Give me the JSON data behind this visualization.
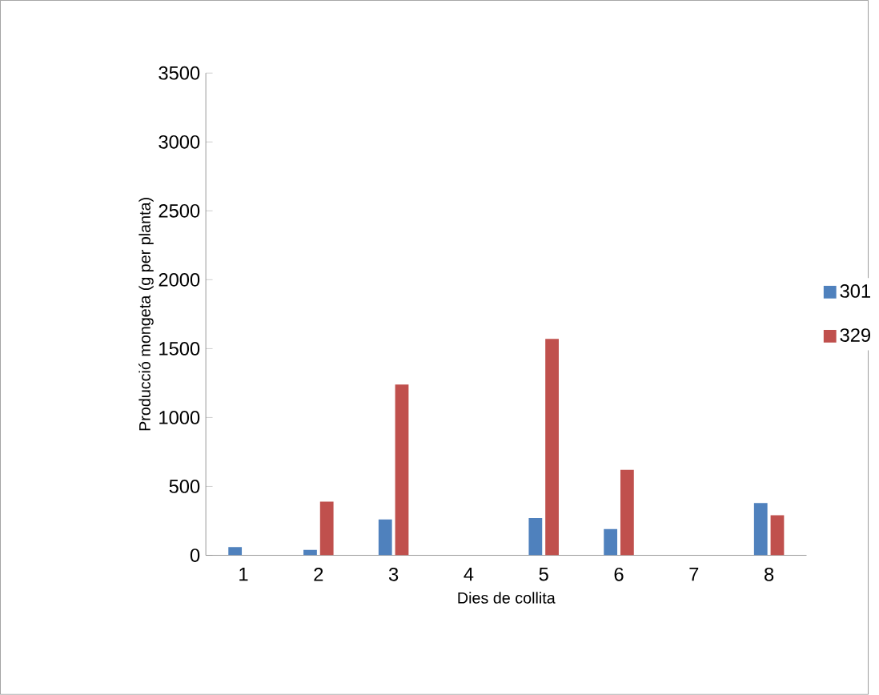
{
  "chart_data": {
    "type": "bar",
    "xlabel": "Dies de collita",
    "ylabel": "Producció mongeta (g per planta)",
    "categories": [
      "1",
      "2",
      "3",
      "4",
      "5",
      "6",
      "7",
      "8"
    ],
    "series": [
      {
        "name": "301",
        "color": "#4f81bd",
        "values": [
          60,
          40,
          260,
          0,
          270,
          190,
          0,
          380
        ]
      },
      {
        "name": "329",
        "color": "#c0504d",
        "values": [
          0,
          390,
          1240,
          0,
          1570,
          620,
          0,
          290
        ]
      }
    ],
    "ylim": [
      0,
      3500
    ],
    "yticks": [
      0,
      500,
      1000,
      1500,
      2000,
      2500,
      3000,
      3500
    ],
    "grid": false,
    "legend": "right"
  }
}
